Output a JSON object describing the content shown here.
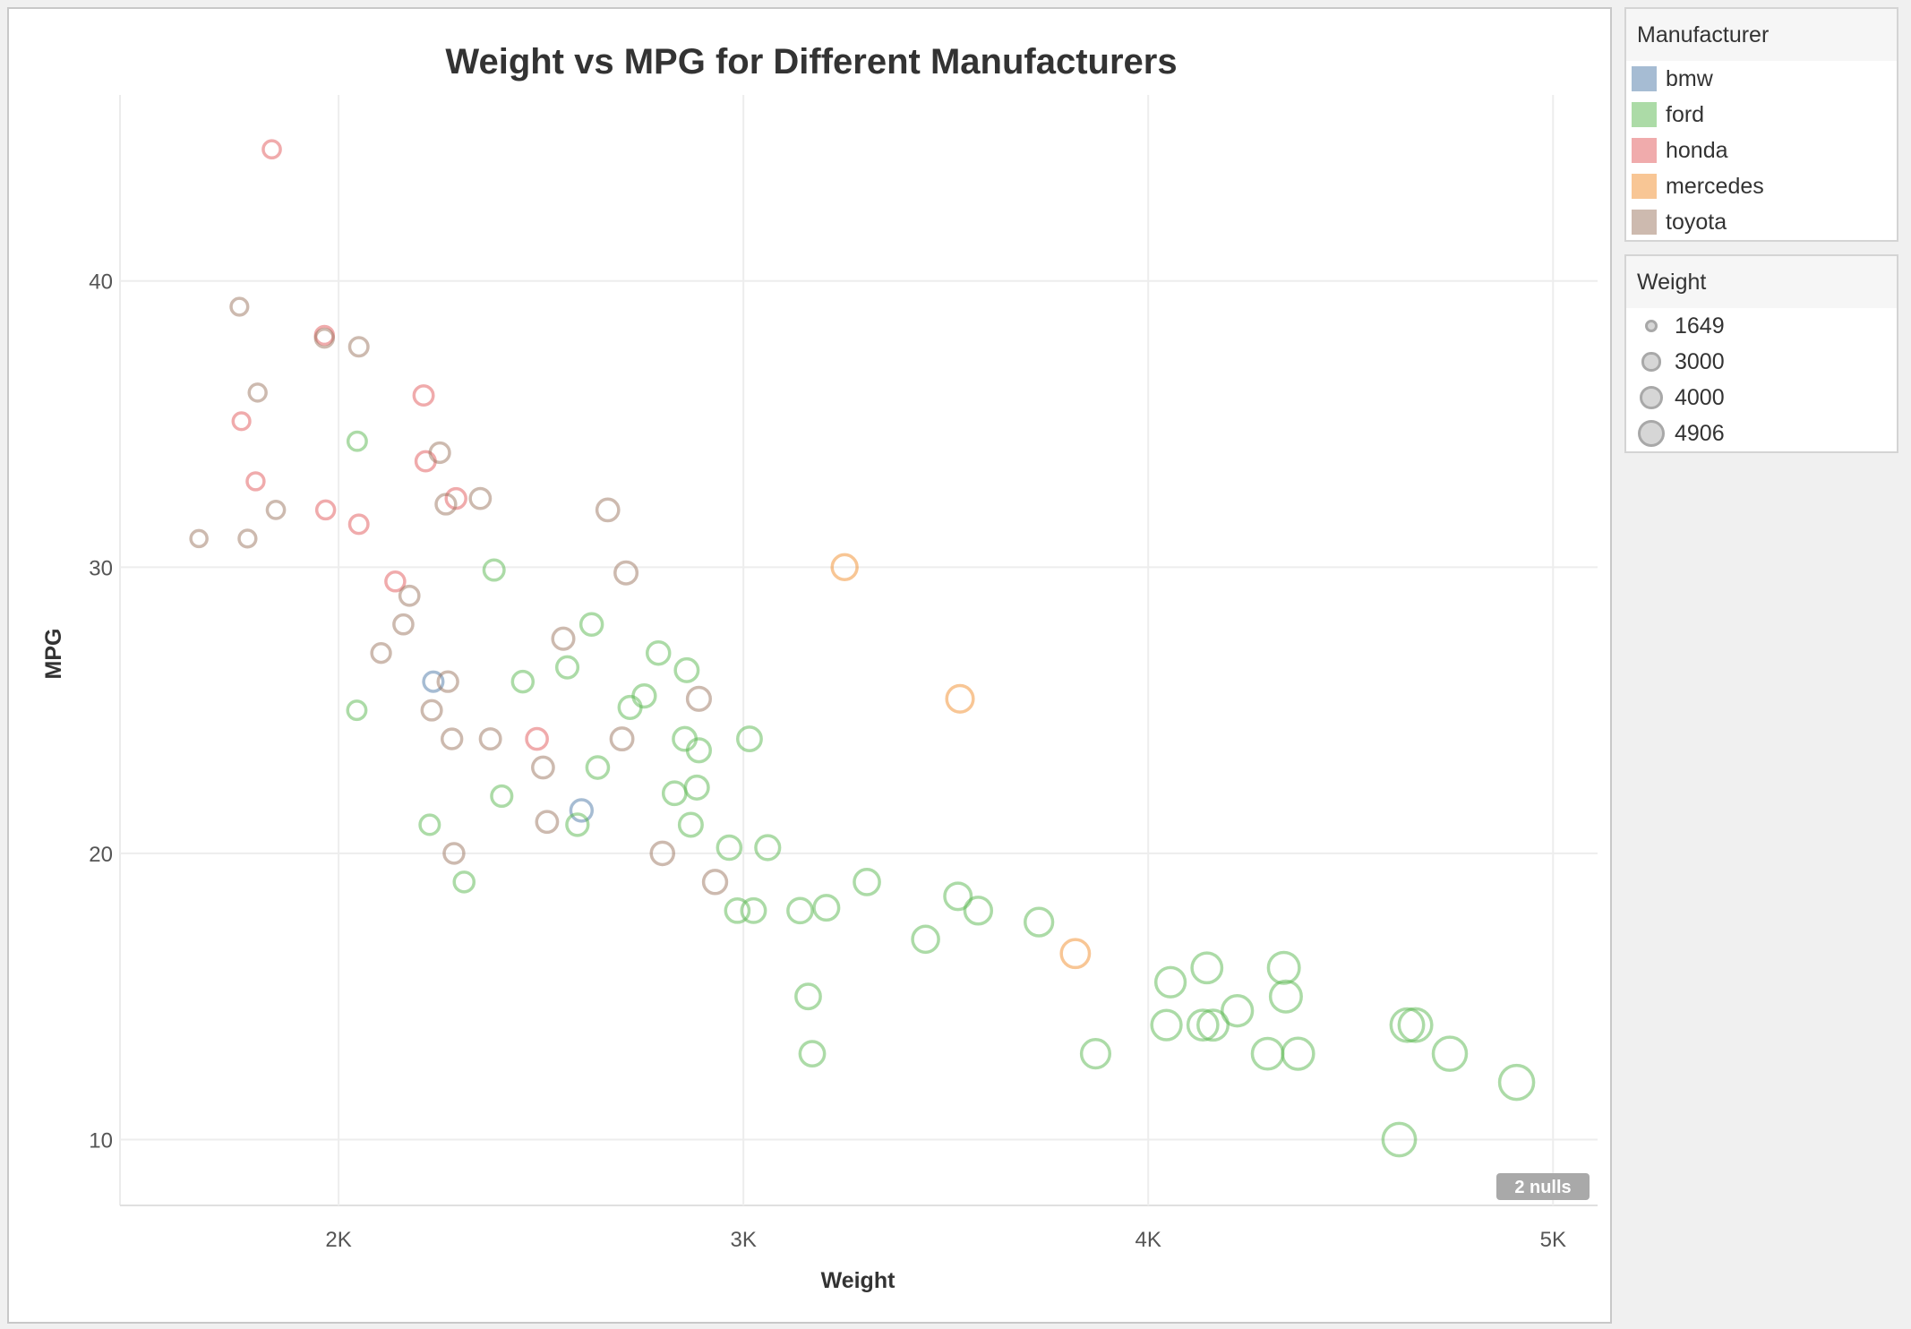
{
  "chart_data": {
    "type": "scatter",
    "title": "Weight vs MPG for Different Manufacturers",
    "xlabel": "Weight",
    "ylabel": "MPG",
    "xlim": [
      1460,
      5110
    ],
    "ylim": [
      7.7,
      46.5
    ],
    "x_ticks": [
      2000,
      3000,
      4000,
      5000
    ],
    "x_tick_labels": [
      "2K",
      "3K",
      "4K",
      "5K"
    ],
    "y_ticks": [
      10,
      20,
      30,
      40
    ],
    "y_tick_labels": [
      "10",
      "20",
      "30",
      "40"
    ],
    "grid": true,
    "nulls_badge": "2 nulls",
    "size_range": [
      1649,
      4906
    ],
    "colors": {
      "bmw": "#4e79a7",
      "ford": "#59b84f",
      "honda": "#e15759",
      "mercedes": "#f28e2b",
      "toyota": "#9c755f"
    },
    "series": [
      {
        "name": "bmw",
        "points": [
          [
            2234,
            26.0
          ],
          [
            2600,
            21.5
          ]
        ]
      },
      {
        "name": "ford",
        "points": [
          [
            2046,
            34.4
          ],
          [
            2045,
            25.0
          ],
          [
            2384,
            29.9
          ],
          [
            2403,
            22.0
          ],
          [
            2225,
            21.0
          ],
          [
            2310,
            19.0
          ],
          [
            2455,
            26.0
          ],
          [
            2565,
            26.5
          ],
          [
            2625,
            28.0
          ],
          [
            2640,
            23.0
          ],
          [
            2590,
            21.0
          ],
          [
            2720,
            25.1
          ],
          [
            2755,
            25.5
          ],
          [
            2790,
            27.0
          ],
          [
            2855,
            24.0
          ],
          [
            2860,
            26.4
          ],
          [
            2830,
            22.1
          ],
          [
            2870,
            21.0
          ],
          [
            2890,
            23.6
          ],
          [
            2885,
            22.3
          ],
          [
            2965,
            20.2
          ],
          [
            2985,
            18.0
          ],
          [
            3015,
            24.0
          ],
          [
            3025,
            18.0
          ],
          [
            3060,
            20.2
          ],
          [
            3140,
            18.0
          ],
          [
            3160,
            15.0
          ],
          [
            3170,
            13.0
          ],
          [
            3205,
            18.1
          ],
          [
            3305,
            19.0
          ],
          [
            3450,
            17.0
          ],
          [
            3530,
            18.5
          ],
          [
            3580,
            18.0
          ],
          [
            3730,
            17.6
          ],
          [
            3870,
            13.0
          ],
          [
            4045,
            14.0
          ],
          [
            4055,
            15.5
          ],
          [
            4135,
            14.0
          ],
          [
            4145,
            16.0
          ],
          [
            4160,
            14.0
          ],
          [
            4220,
            14.5
          ],
          [
            4295,
            13.0
          ],
          [
            4335,
            16.0
          ],
          [
            4340,
            15.0
          ],
          [
            4370,
            13.0
          ],
          [
            4620,
            10.0
          ],
          [
            4640,
            14.0
          ],
          [
            4660,
            14.0
          ],
          [
            4745,
            13.0
          ],
          [
            4910,
            12.0
          ]
        ]
      },
      {
        "name": "honda",
        "points": [
          [
            1835,
            44.6
          ],
          [
            1760,
            35.1
          ],
          [
            1795,
            33.0
          ],
          [
            1965,
            38.1
          ],
          [
            1968,
            32.0
          ],
          [
            2050,
            31.5
          ],
          [
            2210,
            36.0
          ],
          [
            2215,
            33.7
          ],
          [
            2140,
            29.5
          ],
          [
            2290,
            32.4
          ],
          [
            2490,
            24.0
          ]
        ]
      },
      {
        "name": "mercedes",
        "points": [
          [
            3250,
            30.0
          ],
          [
            3535,
            25.4
          ],
          [
            3820,
            16.5
          ]
        ]
      },
      {
        "name": "toyota",
        "points": [
          [
            1655,
            31.0
          ],
          [
            1755,
            39.1
          ],
          [
            1775,
            31.0
          ],
          [
            1800,
            36.1
          ],
          [
            1845,
            32.0
          ],
          [
            1965,
            38.0
          ],
          [
            2050,
            37.7
          ],
          [
            2105,
            27.0
          ],
          [
            2160,
            28.0
          ],
          [
            2175,
            29.0
          ],
          [
            2230,
            25.0
          ],
          [
            2250,
            34.0
          ],
          [
            2265,
            32.2
          ],
          [
            2270,
            26.0
          ],
          [
            2280,
            24.0
          ],
          [
            2285,
            20.0
          ],
          [
            2350,
            32.4
          ],
          [
            2375,
            24.0
          ],
          [
            2505,
            23.0
          ],
          [
            2515,
            21.1
          ],
          [
            2555,
            27.5
          ],
          [
            2665,
            32.0
          ],
          [
            2700,
            24.0
          ],
          [
            2710,
            29.8
          ],
          [
            2800,
            20.0
          ],
          [
            2890,
            25.4
          ],
          [
            2930,
            19.0
          ]
        ]
      }
    ]
  },
  "legends": {
    "manufacturer_title": "Manufacturer",
    "manufacturers": [
      {
        "label": "bmw",
        "color": "#4e79a7"
      },
      {
        "label": "ford",
        "color": "#59b84f"
      },
      {
        "label": "honda",
        "color": "#e15759"
      },
      {
        "label": "mercedes",
        "color": "#f28e2b"
      },
      {
        "label": "toyota",
        "color": "#9c755f"
      }
    ],
    "weight_title": "Weight",
    "weights": [
      "1649",
      "3000",
      "4000",
      "4906"
    ]
  }
}
